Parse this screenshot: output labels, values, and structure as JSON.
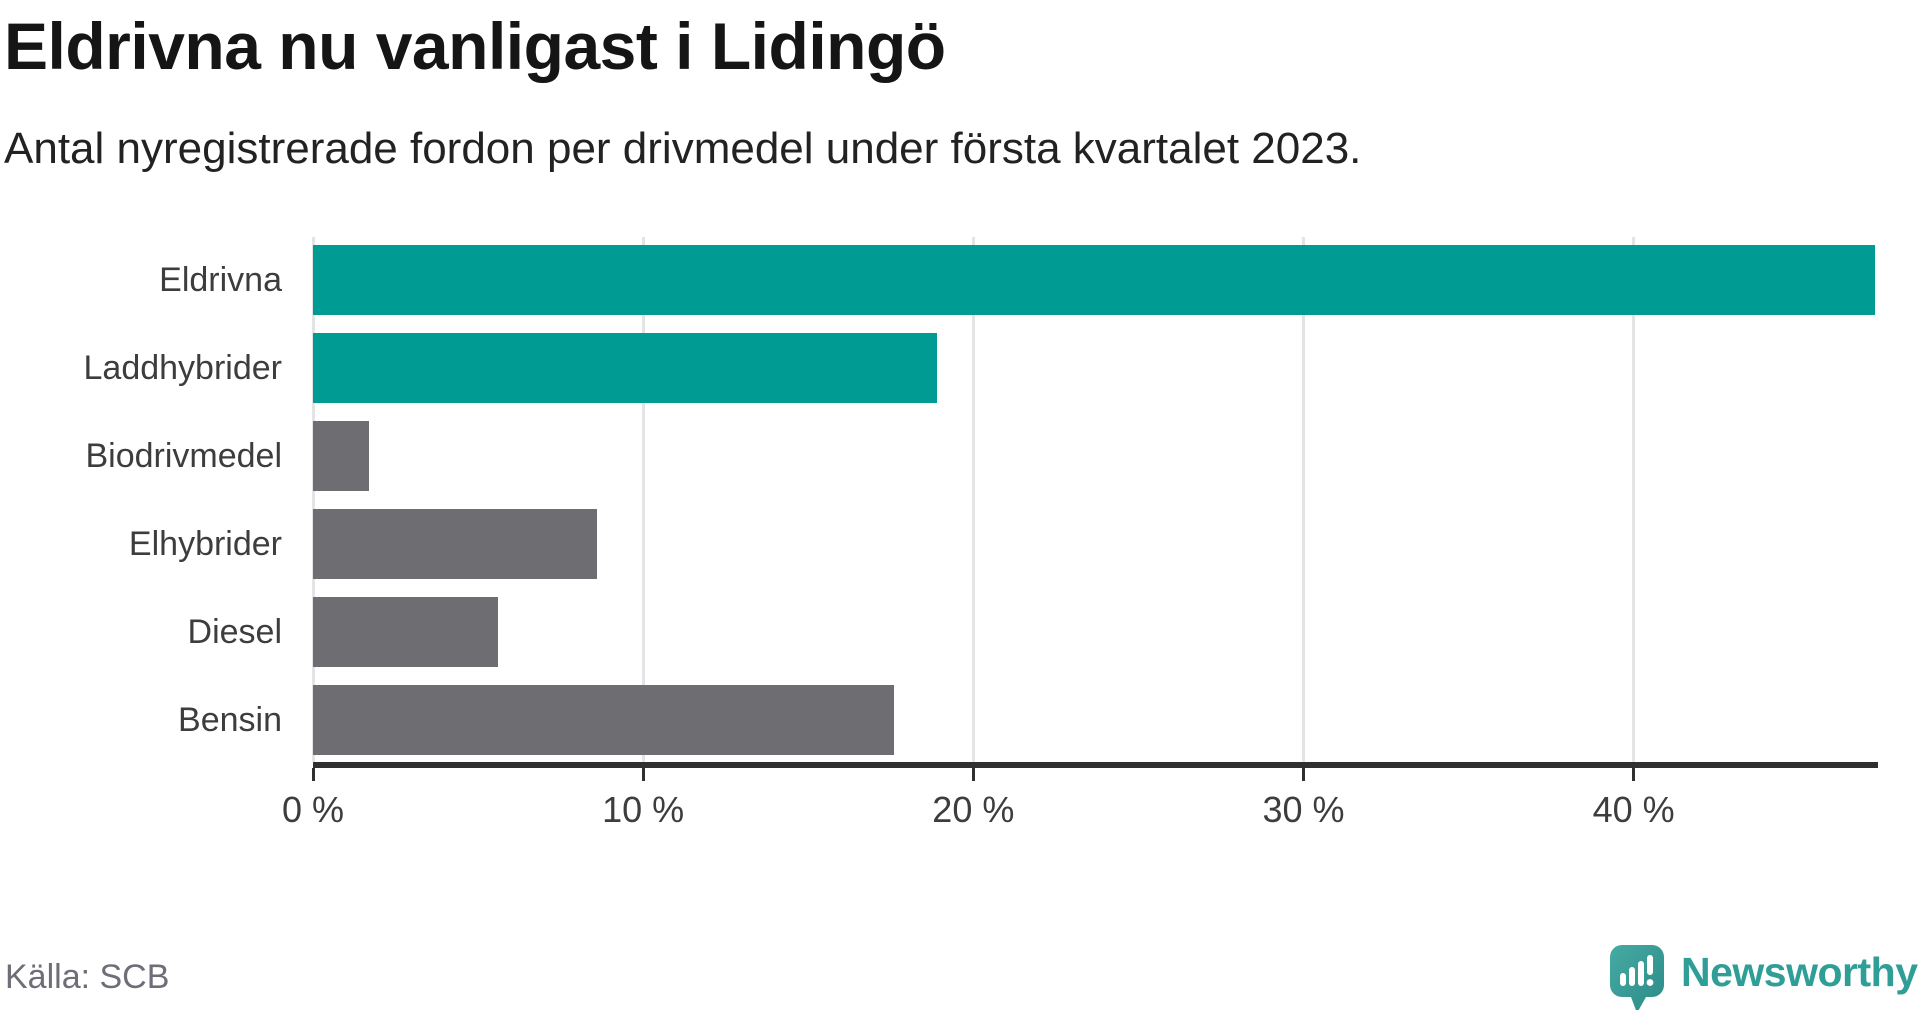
{
  "header": {
    "title": "Eldrivna nu vanligast i Lidingö",
    "subtitle": "Antal nyregistrerade fordon per drivmedel under första kvartalet 2023."
  },
  "footer": {
    "source": "Källa: SCB",
    "brand": "Newsworthy"
  },
  "colors": {
    "highlight_teal": "#009c94",
    "default_gray": "#6d6d72",
    "axis": "#303030",
    "gridline": "#e4e4e7",
    "label_text": "#3d3d3d",
    "brand_teal": "#2f9e96"
  },
  "chart_data": {
    "type": "bar",
    "orientation": "horizontal",
    "title": "Eldrivna nu vanligast i Lidingö",
    "subtitle": "Antal nyregistrerade fordon per drivmedel under första kvartalet 2023.",
    "source": "Källa: SCB",
    "categories": [
      "Eldrivna",
      "Laddhybrider",
      "Biodrivmedel",
      "Elhybrider",
      "Diesel",
      "Bensin"
    ],
    "values": [
      47.3,
      18.9,
      1.7,
      8.6,
      5.6,
      17.6
    ],
    "unit": "%",
    "bar_colors": [
      "#009c94",
      "#009c94",
      "#6d6d72",
      "#6d6d72",
      "#6d6d72",
      "#6d6d72"
    ],
    "xlim": [
      0,
      47.4
    ],
    "xticks": [
      0,
      10,
      20,
      30,
      40
    ],
    "xtick_labels": [
      "0 %",
      "10 %",
      "20 %",
      "30 %",
      "40 %"
    ],
    "grid": "vertical",
    "legend": "none"
  }
}
